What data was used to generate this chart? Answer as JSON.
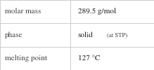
{
  "rows": [
    {
      "label": "molar mass",
      "value": "289.5 g/mol",
      "value_extra": null,
      "value_extra_text": null
    },
    {
      "label": "phase",
      "value": "solid",
      "value_extra": true,
      "value_extra_text": "(at STP)"
    },
    {
      "label": "melting point",
      "value": "127 °C",
      "value_extra": null,
      "value_extra_text": null
    }
  ],
  "col_split": 0.455,
  "background_color": "#ffffff",
  "border_color": "#cccccc",
  "label_fontsize": 8.0,
  "value_fontsize": 8.0,
  "extra_fontsize": 6.2,
  "text_color": "#1a1a1a",
  "label_color": "#444444",
  "font_family": "STIXGeneral"
}
